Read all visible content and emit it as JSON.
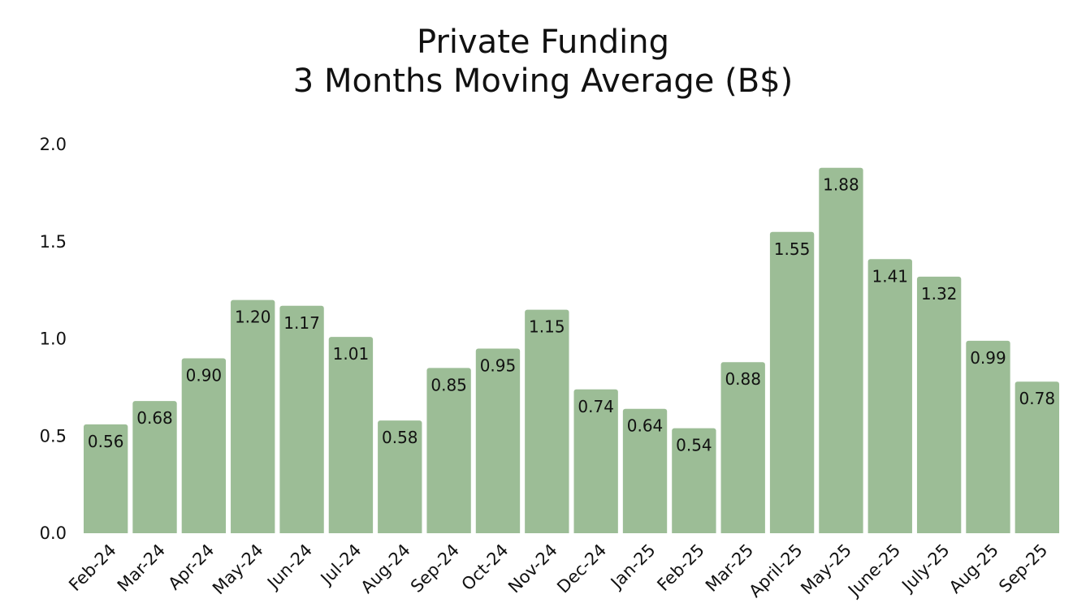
{
  "chart_data": {
    "type": "bar",
    "title": "Private Funding",
    "subtitle": "3 Months Moving Average (B$)",
    "categories": [
      "Feb-24",
      "Mar-24",
      "Apr-24",
      "May-24",
      "Jun-24",
      "Jul-24",
      "Aug-24",
      "Sep-24",
      "Oct-24",
      "Nov-24",
      "Dec-24",
      "Jan-25",
      "Feb-25",
      "Mar-25",
      "April-25",
      "May-25",
      "June-25",
      "July-25",
      "Aug-25",
      "Sep-25"
    ],
    "values": [
      0.56,
      0.68,
      0.9,
      1.2,
      1.17,
      1.01,
      0.58,
      0.85,
      0.95,
      1.15,
      0.74,
      0.64,
      0.54,
      0.88,
      1.55,
      1.88,
      1.41,
      1.32,
      0.99,
      0.78
    ],
    "ylim": [
      0,
      2.0
    ],
    "yticks": [
      "0.0",
      "0.5",
      "1.0",
      "1.5",
      "2.0"
    ],
    "grid": false,
    "bar_color": "#9cbd96",
    "data_labels": true
  }
}
